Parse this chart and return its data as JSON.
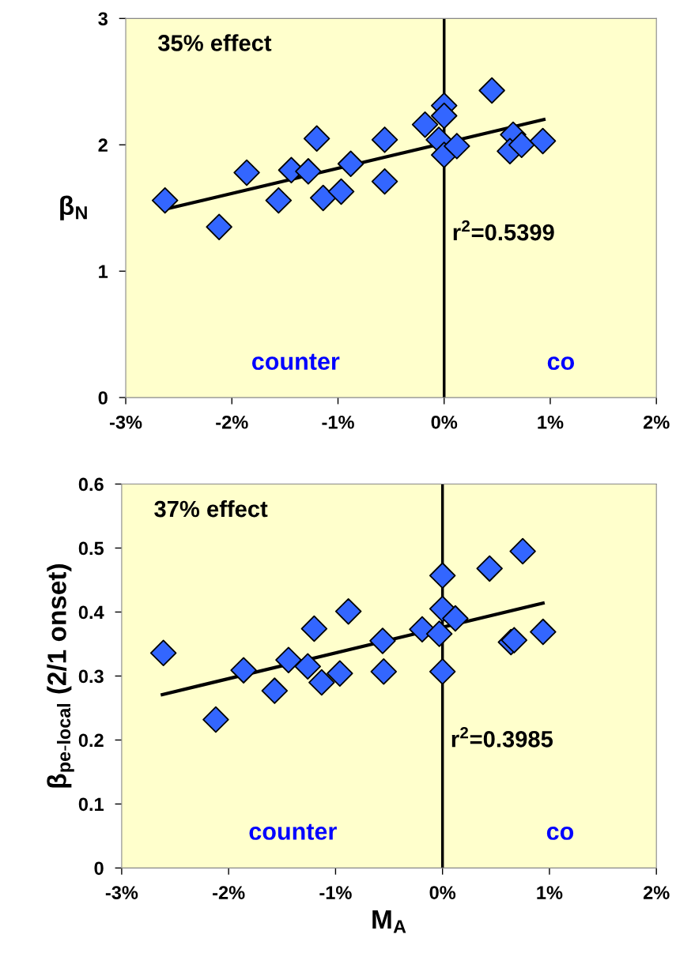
{
  "chart_data": [
    {
      "type": "scatter",
      "ylabel": "β$_{N}$",
      "xlim": [
        -3,
        2
      ],
      "ylim": [
        0,
        3
      ],
      "xticks": [
        {
          "value": -3,
          "label": "-3%"
        },
        {
          "value": -2,
          "label": "-2%"
        },
        {
          "value": -1,
          "label": "-1%"
        },
        {
          "value": 0,
          "label": "0%"
        },
        {
          "value": 1,
          "label": "1%"
        },
        {
          "value": 2,
          "label": "2%"
        }
      ],
      "yticks": [
        0,
        1,
        2,
        3
      ],
      "grid": false,
      "legend": false,
      "marker": "diamond",
      "series": [
        {
          "type": "scatter",
          "color": "#3366ff",
          "x": [
            -2.63,
            -2.12,
            -1.86,
            -1.56,
            -1.44,
            -1.28,
            -1.2,
            -1.14,
            -0.97,
            -0.88,
            -0.56,
            -0.56,
            -0.18,
            0.0,
            0.0,
            -0.05,
            0.0,
            0.12,
            0.45,
            0.65,
            0.62,
            0.73,
            0.93
          ],
          "values": [
            1.56,
            1.35,
            1.78,
            1.56,
            1.8,
            1.79,
            2.05,
            1.58,
            1.63,
            1.85,
            2.04,
            1.71,
            2.16,
            2.31,
            2.23,
            2.04,
            1.92,
            1.99,
            2.43,
            2.08,
            1.95,
            2.0,
            2.03
          ]
        },
        {
          "type": "line",
          "color": "#000000",
          "marker": "none",
          "x": [
            -2.63,
            0.94
          ],
          "values": [
            1.49,
            2.2
          ]
        }
      ],
      "ref_lines": [
        {
          "axis": "x",
          "value": 0,
          "color": "#000000"
        }
      ],
      "bands": [
        {
          "axis": "x",
          "from": -3,
          "to": 0,
          "label": "counter",
          "color": "#ffffcc"
        },
        {
          "axis": "x",
          "from": 0,
          "to": 2,
          "label": "co",
          "color": "#ffffcc"
        }
      ],
      "annotations": [
        "35% effect",
        "r$^{2}$=0.5399"
      ]
    },
    {
      "type": "scatter",
      "xlabel": "M$_{A}$",
      "ylabel": "β$_{pe-local}$ (2/1 onset)",
      "xlim": [
        -3,
        2
      ],
      "ylim": [
        0,
        0.6
      ],
      "xticks": [
        {
          "value": -3,
          "label": "-3%"
        },
        {
          "value": -2,
          "label": "-2%"
        },
        {
          "value": -1,
          "label": "-1%"
        },
        {
          "value": 0,
          "label": "0%"
        },
        {
          "value": 1,
          "label": "1%"
        },
        {
          "value": 2,
          "label": "2%"
        }
      ],
      "yticks": [
        0,
        0.1,
        0.2,
        0.3,
        0.4,
        0.5,
        0.6
      ],
      "grid": false,
      "legend": false,
      "marker": "diamond",
      "series": [
        {
          "type": "scatter",
          "color": "#3366ff",
          "x": [
            -2.61,
            -2.12,
            -1.86,
            -1.57,
            -1.44,
            -1.26,
            -1.2,
            -1.13,
            -0.96,
            -0.88,
            -0.56,
            -0.55,
            -0.19,
            -0.03,
            0.0,
            0.0,
            0.0,
            0.12,
            0.44,
            0.75,
            0.64,
            0.67,
            0.94
          ],
          "values": [
            0.336,
            0.232,
            0.309,
            0.277,
            0.325,
            0.315,
            0.374,
            0.29,
            0.304,
            0.401,
            0.355,
            0.307,
            0.373,
            0.366,
            0.457,
            0.405,
            0.307,
            0.39,
            0.468,
            0.495,
            0.353,
            0.356,
            0.369
          ]
        },
        {
          "type": "line",
          "color": "#000000",
          "marker": "none",
          "x": [
            -2.62,
            0.94
          ],
          "values": [
            0.271,
            0.414
          ]
        }
      ],
      "ref_lines": [
        {
          "axis": "x",
          "value": 0,
          "color": "#000000"
        }
      ],
      "bands": [
        {
          "axis": "x",
          "from": -3,
          "to": 0,
          "label": "counter",
          "color": "#ffffcc"
        },
        {
          "axis": "x",
          "from": 0,
          "to": 2,
          "label": "co",
          "color": "#ffffcc"
        }
      ],
      "annotations": [
        "37% effect",
        "r$^{2}$=0.3985"
      ]
    }
  ]
}
